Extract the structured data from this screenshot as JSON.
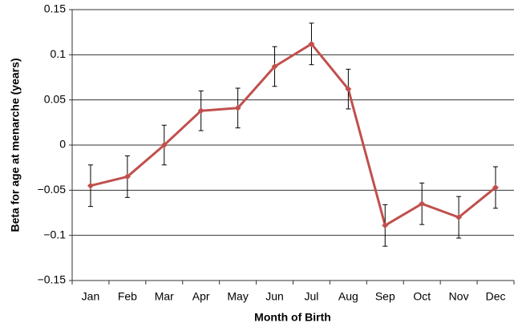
{
  "chart_data": {
    "type": "line",
    "x_label": "Month of Birth",
    "y_label": "Beta for age at menarche (years)",
    "categories": [
      "Jan",
      "Feb",
      "Mar",
      "Apr",
      "May",
      "Jun",
      "Jul",
      "Aug",
      "Sep",
      "Oct",
      "Nov",
      "Dec"
    ],
    "values": [
      -0.045,
      -0.035,
      0.0,
      0.038,
      0.041,
      0.087,
      0.112,
      0.062,
      -0.089,
      -0.065,
      -0.08,
      -0.047
    ],
    "errors": [
      0.023,
      0.023,
      0.022,
      0.022,
      0.022,
      0.022,
      0.023,
      0.022,
      0.023,
      0.023,
      0.023,
      0.023
    ],
    "color": "#c0504d",
    "ylim": [
      -0.15,
      0.15
    ],
    "yticks": [
      {
        "value": -0.15,
        "label": "−0.15"
      },
      {
        "value": -0.1,
        "label": "−0.1"
      },
      {
        "value": -0.05,
        "label": "−0.05"
      },
      0,
      0.05,
      0.1,
      0.15
    ],
    "grid": true
  }
}
